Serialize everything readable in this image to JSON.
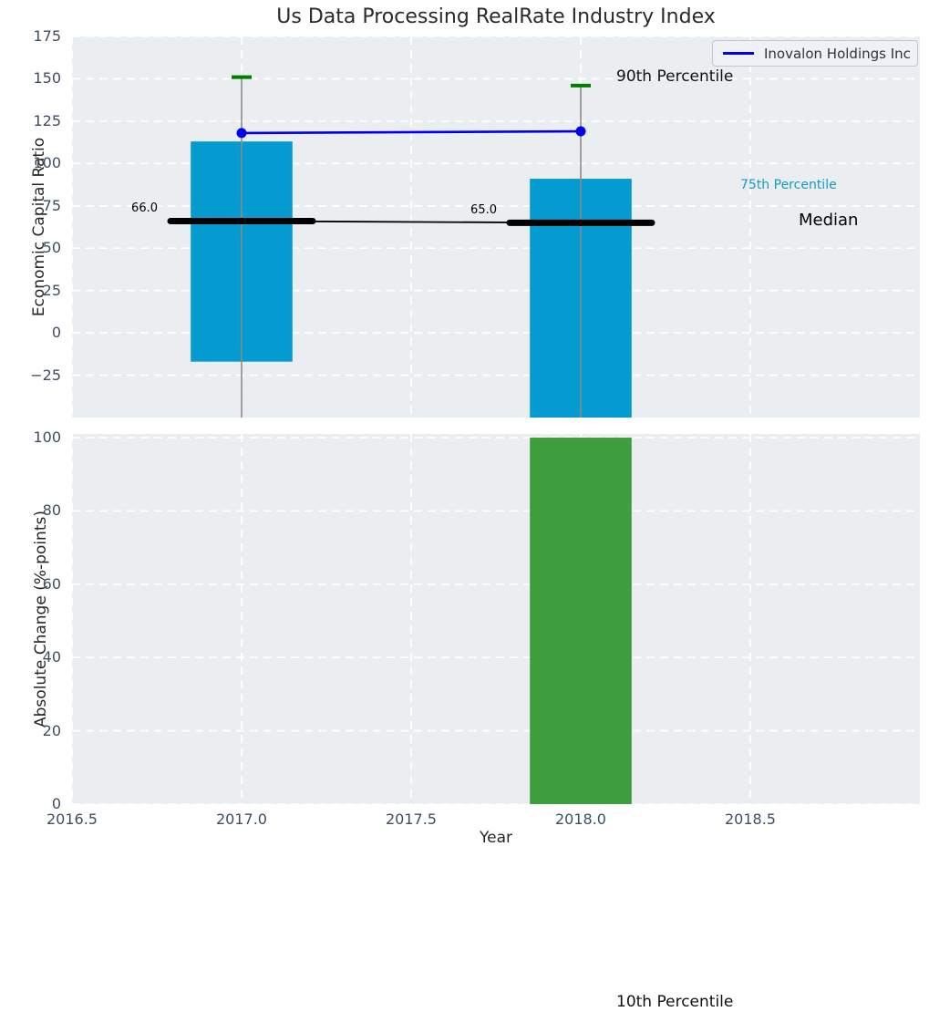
{
  "title": "Us Data Processing RealRate Industry Index",
  "legend": {
    "label": "Inovalon Holdings Inc"
  },
  "annotations": {
    "p90_label": "90th Percentile",
    "p75_label": "75th Percentile",
    "median_label": "Median",
    "p10_label": "10th Percentile"
  },
  "colors": {
    "figure_bg": "#ffffff",
    "axes_bg": "#eaeef0",
    "grid": "#ffffff",
    "bar_cyan": "#049bd0",
    "bar_green": "#3e9e3e",
    "whisker_line": "#8a8a8a",
    "whisker_cap": "#007d00",
    "median_line": "#000000",
    "company_line": "#0000ee",
    "tick_text": "#3e4d63",
    "p75_text": "#1799c6"
  },
  "chart_data": [
    {
      "type": "bar",
      "panel": "top",
      "ylabel": "Economic Capital Ratio",
      "ylim": [
        -50,
        175
      ],
      "xlim": [
        2016.5,
        2019.0
      ],
      "yticks": [
        -25,
        0,
        25,
        50,
        75,
        100,
        125,
        150,
        175
      ],
      "xticks": [
        2016.5,
        2017.0,
        2017.5,
        2018.0,
        2018.5
      ],
      "grid": "white-dashed",
      "bar_width_years": 0.3,
      "percentile_bars": [
        {
          "x": 2017,
          "p75_bar_top": 113,
          "bar_bottom": -17,
          "p90_whisker": 151,
          "median": 66,
          "median_label": "66.0"
        },
        {
          "x": 2018,
          "p75_bar_top": 91,
          "bar_bottom": null,
          "p90_whisker": 146,
          "median": 65,
          "median_label": "65.0"
        }
      ],
      "company_series": {
        "name": "Inovalon Holdings Inc",
        "points": [
          {
            "x": 2017,
            "y": 118
          },
          {
            "x": 2018,
            "y": 119
          }
        ]
      }
    },
    {
      "type": "bar",
      "panel": "bottom",
      "ylabel": "Absolute Change (%-points)",
      "xlabel": "Year",
      "ylim": [
        0,
        101
      ],
      "xlim": [
        2016.5,
        2019.0
      ],
      "yticks": [
        0,
        20,
        40,
        60,
        80,
        100
      ],
      "xticks": [
        2016.5,
        2017.0,
        2017.5,
        2018.0,
        2018.5
      ],
      "bar_width_years": 0.3,
      "categories": [
        2018
      ],
      "values": [
        100
      ]
    }
  ]
}
